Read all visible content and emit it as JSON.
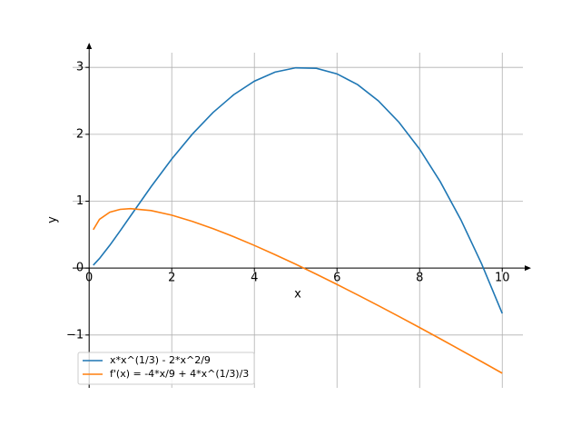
{
  "chart_data": {
    "type": "line",
    "x_label": "x",
    "y_label": "y",
    "x": [
      0.1,
      0.25,
      0.5,
      0.75,
      1,
      1.5,
      2,
      2.5,
      3,
      3.5,
      4,
      4.5,
      5,
      5.5,
      6,
      6.5,
      7,
      7.5,
      8,
      8.5,
      9,
      9.5,
      10
    ],
    "series": [
      {
        "name": "x*x^(1/3) - 2*x^2/9",
        "color": "#1f77b4",
        "values": [
          0.044,
          0.144,
          0.341,
          0.556,
          0.778,
          1.217,
          1.631,
          2.004,
          2.327,
          2.592,
          2.794,
          2.93,
          2.994,
          2.986,
          2.903,
          2.742,
          2.501,
          2.18,
          1.778,
          1.291,
          0.721,
          0.064,
          -0.678
        ]
      },
      {
        "name": "f'(x) = -4*x/9 + 4*x^(1/3)/3",
        "color": "#ff7f0e",
        "values": [
          0.574,
          0.729,
          0.836,
          0.878,
          0.889,
          0.86,
          0.791,
          0.698,
          0.59,
          0.469,
          0.339,
          0.201,
          0.058,
          -0.091,
          -0.244,
          -0.401,
          -0.56,
          -0.723,
          -0.889,
          -1.057,
          -1.227,
          -1.398,
          -1.571
        ]
      }
    ],
    "xlim": [
      -0.4,
      10.5
    ],
    "ylim": [
      -1.79,
      3.22
    ],
    "xticks": [
      0,
      2,
      4,
      6,
      8,
      10
    ],
    "yticks": [
      {
        "value": -1,
        "label": "−1"
      },
      0,
      1,
      2,
      3
    ],
    "grid": true,
    "legend": "lower left"
  }
}
